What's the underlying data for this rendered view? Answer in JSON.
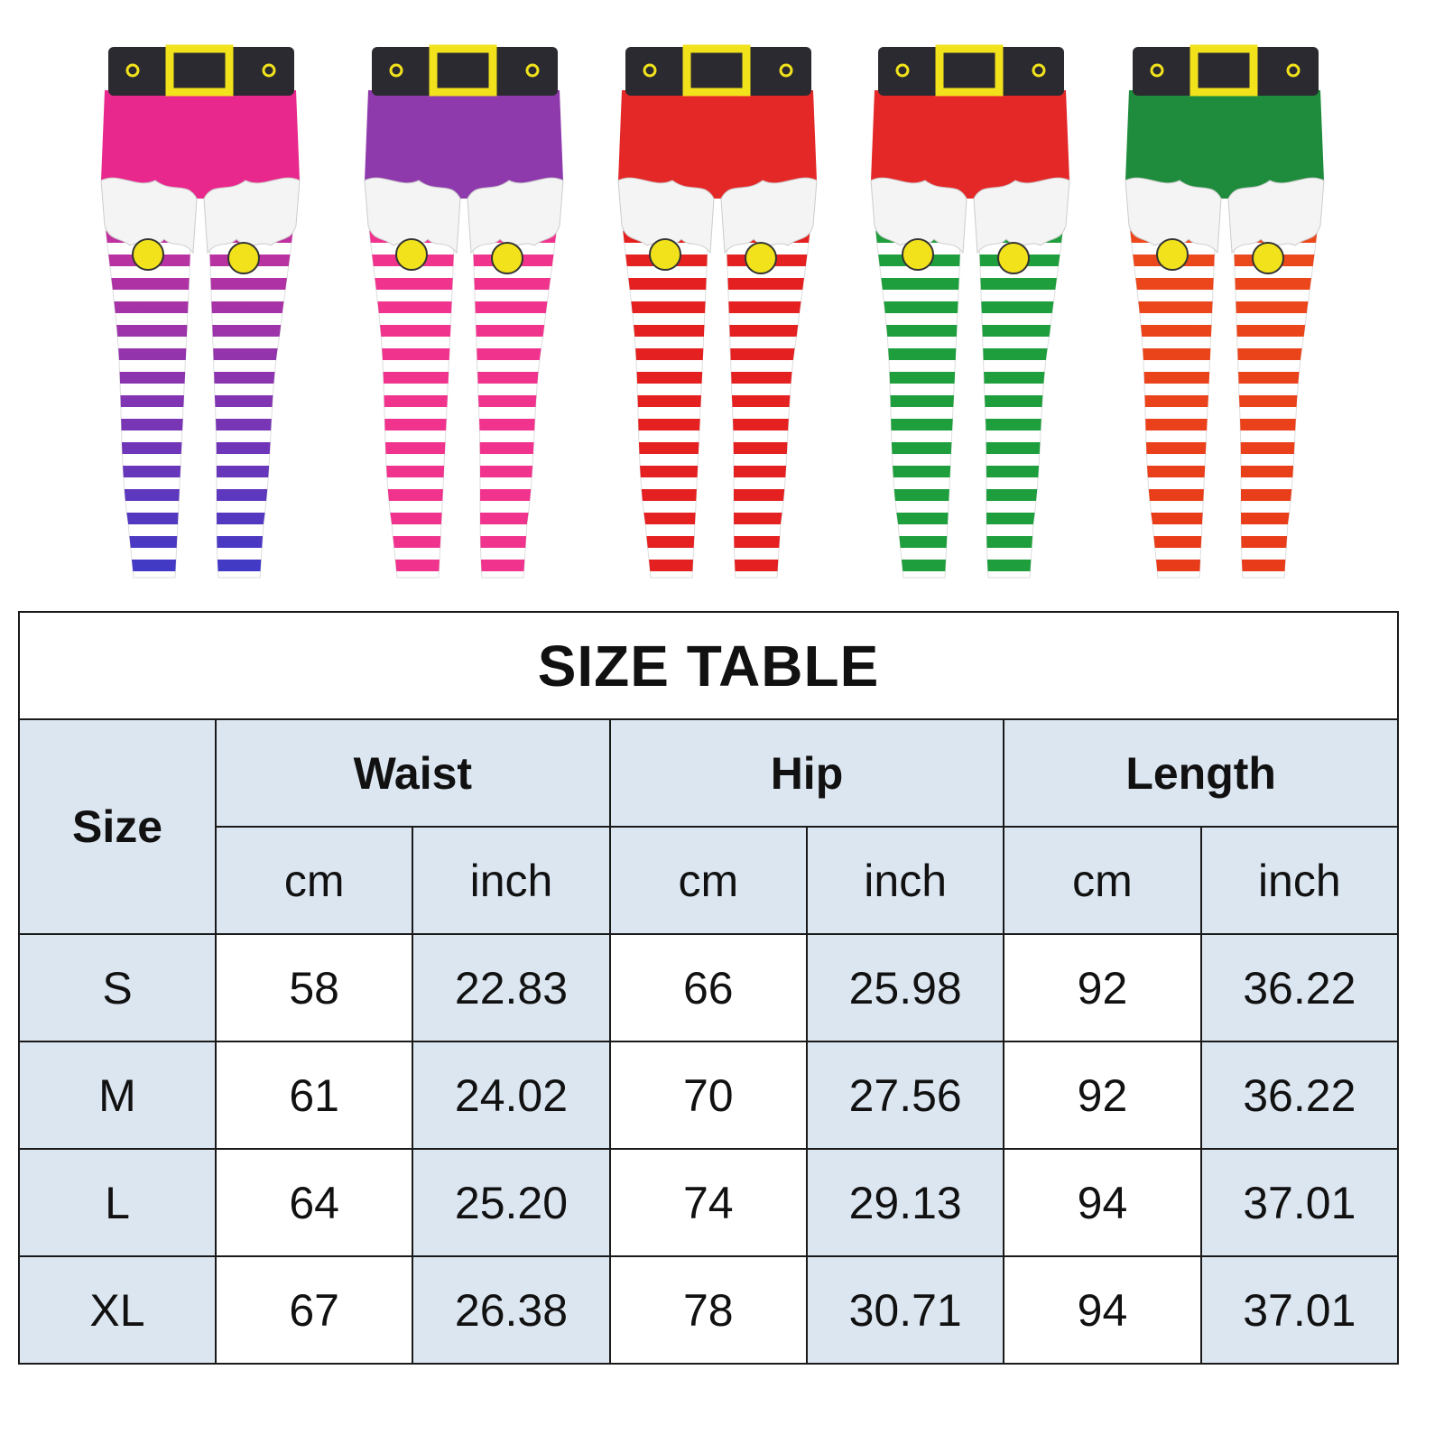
{
  "products": [
    {
      "name": "pink-purple-blue",
      "shorts": "#e8288c",
      "stripe_top": "#d0309a",
      "stripe_bottom": "#3a3ac8"
    },
    {
      "name": "purple-pink",
      "shorts": "#8e3aac",
      "stripe_top": "#f0348e",
      "stripe_bottom": "#f0348e"
    },
    {
      "name": "red-red",
      "shorts": "#e42828",
      "stripe_top": "#e42020",
      "stripe_bottom": "#e42020"
    },
    {
      "name": "red-green",
      "shorts": "#e42828",
      "stripe_top": "#1e9e3c",
      "stripe_bottom": "#1e9e3c"
    },
    {
      "name": "green-orange",
      "shorts": "#1e8c3c",
      "stripe_top": "#ec4a1c",
      "stripe_bottom": "#e83a1a"
    }
  ],
  "colors": {
    "header_bg": "#dce6f1",
    "border": "#1a1a1a",
    "belt": "#2a2a30",
    "buckle": "#f2e21c"
  },
  "table": {
    "title": "SIZE TABLE",
    "size_header": "Size",
    "groups": [
      "Waist",
      "Hip",
      "Length"
    ],
    "units": [
      "cm",
      "inch",
      "cm",
      "inch",
      "cm",
      "inch"
    ],
    "rows": [
      {
        "size": "S",
        "values": [
          "58",
          "22.83",
          "66",
          "25.98",
          "92",
          "36.22"
        ]
      },
      {
        "size": "M",
        "values": [
          "61",
          "24.02",
          "70",
          "27.56",
          "92",
          "36.22"
        ]
      },
      {
        "size": "L",
        "values": [
          "64",
          "25.20",
          "74",
          "29.13",
          "94",
          "37.01"
        ]
      },
      {
        "size": "XL",
        "values": [
          "67",
          "26.38",
          "78",
          "30.71",
          "94",
          "37.01"
        ]
      }
    ]
  }
}
